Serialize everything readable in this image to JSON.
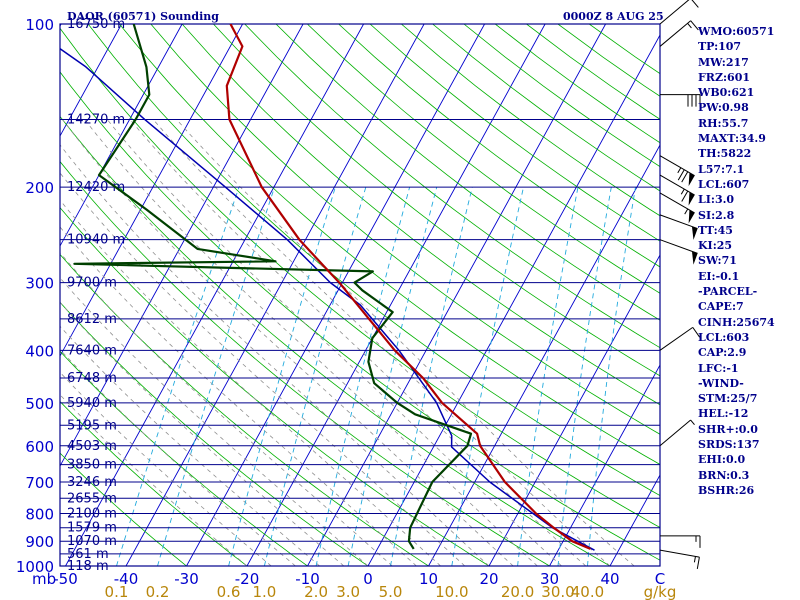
{
  "header": {
    "station": "DAOR (60571) Sounding",
    "time": "0000Z  8 AUG 25"
  },
  "indices": [
    "WMO:60571",
    "TP:107",
    "MW:217",
    "FRZ:601",
    "WB0:621",
    "PW:0.98",
    "RH:55.7",
    "MAXT:34.9",
    "TH:5822",
    "L57:7.1",
    "LCL:607",
    "LI:3.0",
    "SI:2.8",
    "TT:45",
    "KI:25",
    "SW:71",
    "EI:-0.1",
    "-PARCEL-",
    "CAPE:7",
    "CINH:25674",
    "LCL:603",
    "CAP:2.9",
    "LFC:-1",
    "-WIND-",
    "STM:25/7",
    "HEL:-12",
    "SHR+:0.0",
    "SRDS:137",
    "EHI:0.0",
    "BRN:0.3",
    "BSHR:26"
  ],
  "colors": {
    "isobar": "#00008b",
    "isotherm": "#0000cd",
    "dry_adiabat": "#00b000",
    "moist_adiabat": "#909090",
    "mixing_ratio": "#22aadd",
    "temperature": "#b00000",
    "dewpoint": "#004000",
    "parcel": "#0000b0",
    "axis_text": "#0000cd",
    "mixing_text": "#b8860b",
    "wind": "#000000"
  },
  "chart_data": {
    "type": "skew-t",
    "y_unit_label": "mb",
    "x_unit_label": "C",
    "mixing_unit_label": "g/kg",
    "pressure_ticks": [
      100,
      200,
      300,
      400,
      500,
      600,
      700,
      800,
      900,
      1000
    ],
    "isobars": [
      {
        "p": 100,
        "label": "16750 m"
      },
      {
        "p": 150,
        "label": "14270 m"
      },
      {
        "p": 200,
        "label": "12420 m"
      },
      {
        "p": 250,
        "label": "10940 m"
      },
      {
        "p": 300,
        "label": "9700 m"
      },
      {
        "p": 350,
        "label": "8612 m"
      },
      {
        "p": 400,
        "label": "7640 m"
      },
      {
        "p": 450,
        "label": "6748 m"
      },
      {
        "p": 500,
        "label": "5940 m"
      },
      {
        "p": 550,
        "label": "5195 m"
      },
      {
        "p": 600,
        "label": "4503 m"
      },
      {
        "p": 650,
        "label": "3850 m"
      },
      {
        "p": 700,
        "label": "3246 m"
      },
      {
        "p": 750,
        "label": "2655 m"
      },
      {
        "p": 800,
        "label": "2100 m"
      },
      {
        "p": 850,
        "label": "1579 m"
      },
      {
        "p": 900,
        "label": "1070 m"
      },
      {
        "p": 950,
        "label": "561 m"
      },
      {
        "p": 1000,
        "label": "118 m"
      }
    ],
    "temperature_ticks": [
      "-50",
      "-40",
      "-30",
      "-20",
      "-10",
      "0",
      "10",
      "20",
      "30",
      "40"
    ],
    "mixing_ratio_ticks": [
      "0.1",
      "0.2",
      "0.6",
      "1.0",
      "2.0",
      "3.0",
      "5.0",
      "10.0",
      "20.0",
      "30.0",
      "40.0"
    ],
    "temperature": [
      {
        "p": 930,
        "t": 35.2
      },
      {
        "p": 900,
        "t": 31.5
      },
      {
        "p": 850,
        "t": 27.2
      },
      {
        "p": 800,
        "t": 23.0
      },
      {
        "p": 700,
        "t": 15.0
      },
      {
        "p": 600,
        "t": 7.6
      },
      {
        "p": 570,
        "t": 6.0
      },
      {
        "p": 500,
        "t": -2.6
      },
      {
        "p": 450,
        "t": -8.0
      },
      {
        "p": 400,
        "t": -15.2
      },
      {
        "p": 350,
        "t": -22.3
      },
      {
        "p": 300,
        "t": -30.5
      },
      {
        "p": 280,
        "t": -34.5
      },
      {
        "p": 250,
        "t": -41.0
      },
      {
        "p": 200,
        "t": -52.0
      },
      {
        "p": 150,
        "t": -63.5
      },
      {
        "p": 130,
        "t": -67.0
      },
      {
        "p": 110,
        "t": -68.0
      },
      {
        "p": 100,
        "t": -72.0
      }
    ],
    "dewpoint": [
      {
        "p": 930,
        "t": 6.0
      },
      {
        "p": 900,
        "t": 4.5
      },
      {
        "p": 850,
        "t": 3.5
      },
      {
        "p": 700,
        "t": 3.0
      },
      {
        "p": 600,
        "t": 5.5
      },
      {
        "p": 570,
        "t": 5.0
      },
      {
        "p": 525,
        "t": -6.0
      },
      {
        "p": 500,
        "t": -10.0
      },
      {
        "p": 460,
        "t": -15.6
      },
      {
        "p": 420,
        "t": -18.5
      },
      {
        "p": 380,
        "t": -20.0
      },
      {
        "p": 340,
        "t": -19.0
      },
      {
        "p": 310,
        "t": -26.0
      },
      {
        "p": 300,
        "t": -28.0
      },
      {
        "p": 286,
        "t": -26.0
      },
      {
        "p": 282,
        "t": -49.0
      },
      {
        "p": 277,
        "t": -76.0
      },
      {
        "p": 274,
        "t": -43.0
      },
      {
        "p": 260,
        "t": -57.0
      },
      {
        "p": 220,
        "t": -69.0
      },
      {
        "p": 190,
        "t": -80.0
      },
      {
        "p": 150,
        "t": -79.0
      },
      {
        "p": 135,
        "t": -79.0
      },
      {
        "p": 120,
        "t": -82.0
      },
      {
        "p": 100,
        "t": -88.0
      }
    ],
    "parcel": [
      {
        "p": 935,
        "t": 36.0
      },
      {
        "p": 850,
        "t": 27.0
      },
      {
        "p": 700,
        "t": 12.5
      },
      {
        "p": 603,
        "t": 3.0
      },
      {
        "p": 575,
        "t": 2.0
      },
      {
        "p": 500,
        "t": -3.5
      },
      {
        "p": 400,
        "t": -14.5
      },
      {
        "p": 330,
        "t": -25.0
      },
      {
        "p": 300,
        "t": -32.0
      },
      {
        "p": 250,
        "t": -43.0
      },
      {
        "p": 200,
        "t": -58.0
      },
      {
        "p": 150,
        "t": -77.5
      },
      {
        "p": 120,
        "t": -92.0
      },
      {
        "p": 100,
        "t": -106.0
      }
    ],
    "wind_barbs": [
      {
        "p": 935,
        "dir": 280,
        "spd": 15
      },
      {
        "p": 880,
        "dir": 270,
        "spd": 15
      },
      {
        "p": 600,
        "dir": 230,
        "spd": 5
      },
      {
        "p": 400,
        "dir": 235,
        "spd": 10
      },
      {
        "p": 250,
        "dir": 290,
        "spd": 50
      },
      {
        "p": 225,
        "dir": 290,
        "spd": 50
      },
      {
        "p": 205,
        "dir": 300,
        "spd": 55
      },
      {
        "p": 190,
        "dir": 300,
        "spd": 65
      },
      {
        "p": 175,
        "dir": 300,
        "spd": 75
      },
      {
        "p": 135,
        "dir": 270,
        "spd": 40
      },
      {
        "p": 110,
        "dir": 230,
        "spd": 15
      },
      {
        "p": 100,
        "dir": 230,
        "spd": 10
      }
    ]
  }
}
